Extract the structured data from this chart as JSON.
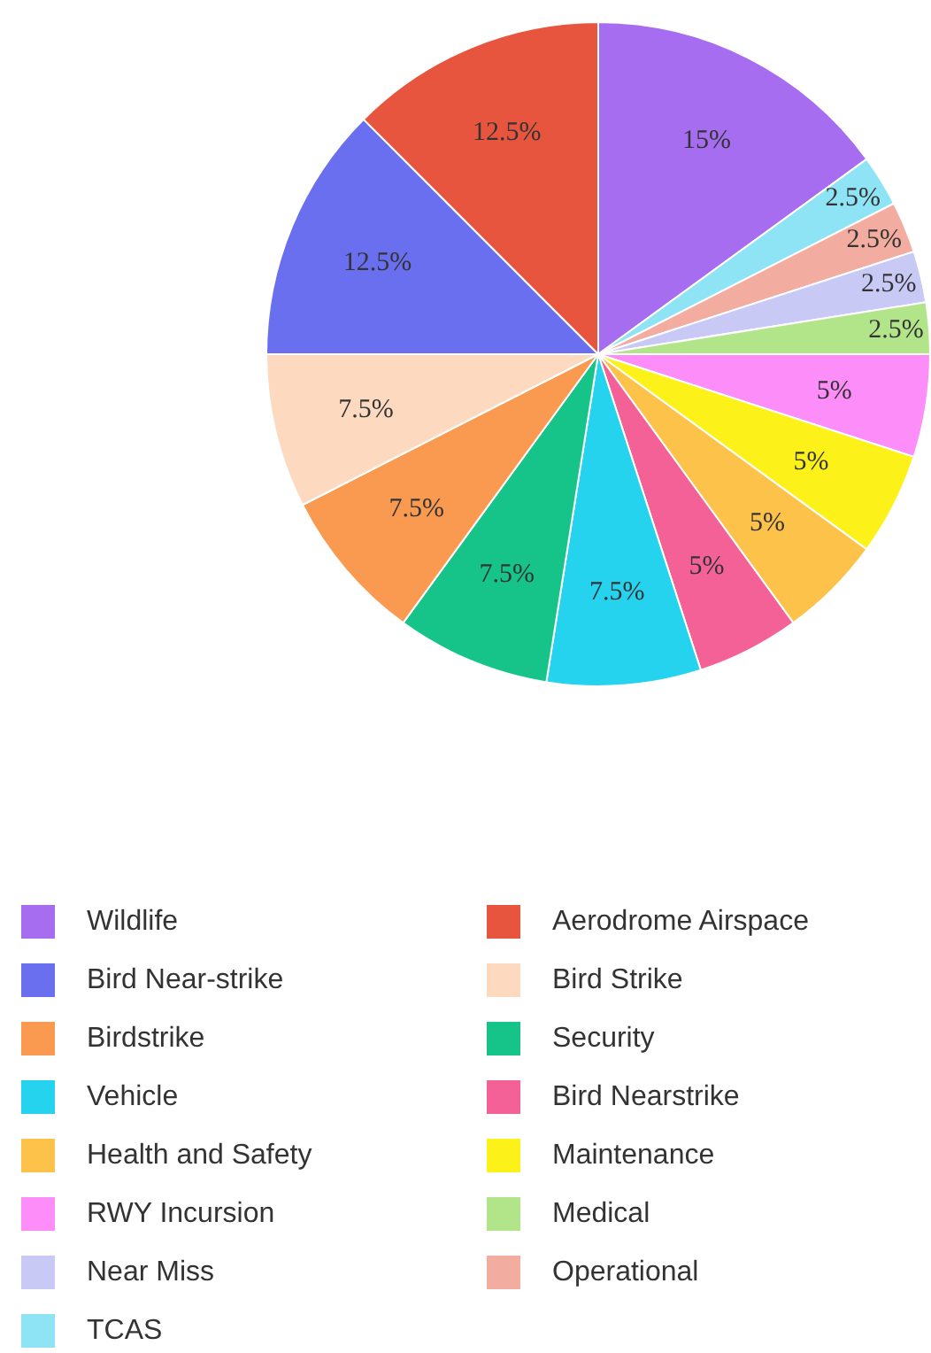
{
  "chart_data": {
    "type": "pie",
    "categories": [
      "Wildlife",
      "TCAS",
      "Operational",
      "Near Miss",
      "Medical",
      "RWY Incursion",
      "Maintenance",
      "Health and Safety",
      "Bird Nearstrike",
      "Vehicle",
      "Security",
      "Birdstrike",
      "Bird Strike",
      "Bird Near-strike",
      "Aerodrome Airspace"
    ],
    "values": [
      15,
      2.5,
      2.5,
      2.5,
      2.5,
      5,
      5,
      5,
      5,
      7.5,
      7.5,
      7.5,
      7.5,
      12.5,
      12.5
    ],
    "value_labels": [
      "15%",
      "2.5%",
      "2.5%",
      "2.5%",
      "2.5%",
      "5%",
      "5%",
      "5%",
      "5%",
      "7.5%",
      "7.5%",
      "7.5%",
      "7.5%",
      "12.5%",
      "12.5%"
    ],
    "colors": [
      "#a66df0",
      "#8ee4f5",
      "#f3aca0",
      "#c9c9f6",
      "#b2e58a",
      "#fd8ef9",
      "#fcf21a",
      "#fcc24a",
      "#f46197",
      "#25d3ef",
      "#16c48a",
      "#f99a50",
      "#fdd9c0",
      "#6a6ff0",
      "#e8553e"
    ],
    "legend": "bottom"
  }
}
